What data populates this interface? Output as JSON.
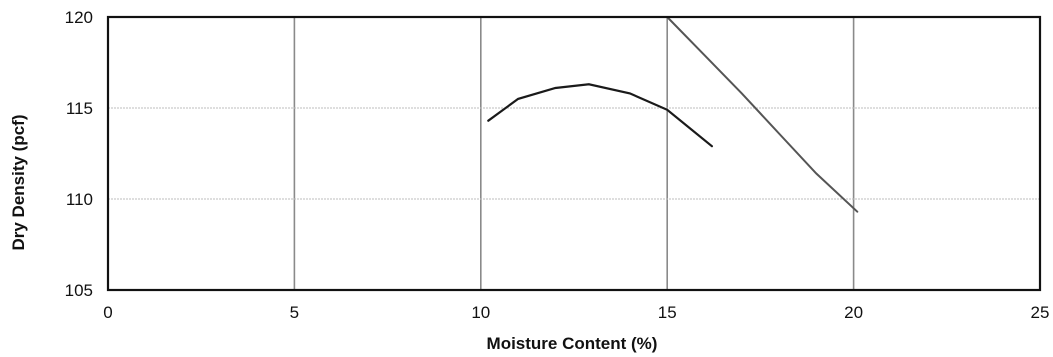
{
  "chart_data": {
    "type": "line",
    "xlabel": "Moisture Content (%)",
    "ylabel": "Dry Density (pcf)",
    "xlim": [
      0,
      25
    ],
    "ylim": [
      105,
      120
    ],
    "x_ticks": [
      "0",
      "5",
      "10",
      "15",
      "20",
      "25"
    ],
    "y_ticks": [
      "105",
      "110",
      "115",
      "120"
    ],
    "grid": true,
    "series": [
      {
        "x": [
          10.2,
          11.0,
          12.0,
          12.9,
          14.0,
          15.0,
          16.2
        ],
        "y": [
          114.3,
          115.5,
          116.1,
          116.3,
          115.8,
          114.9,
          112.9
        ]
      },
      {
        "x": [
          15.0,
          16.0,
          17.0,
          18.0,
          19.0,
          20.1
        ],
        "y": [
          120.0,
          117.9,
          115.8,
          113.6,
          111.4,
          109.3
        ]
      }
    ]
  }
}
